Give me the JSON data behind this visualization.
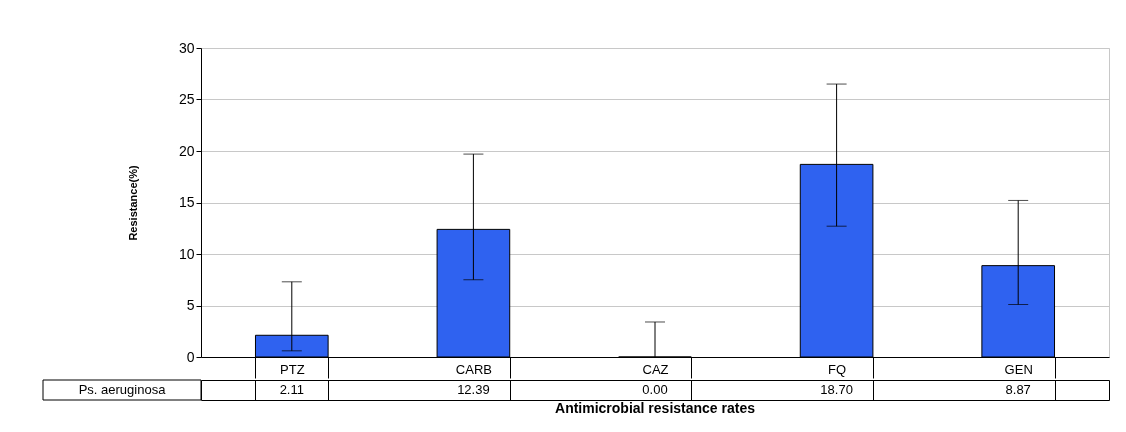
{
  "chart_data": {
    "type": "bar",
    "xlabel": "Antimicrobial resistance rates",
    "ylabel": "Resistance(%)",
    "categories": [
      "PTZ",
      "CARB",
      "CAZ",
      "FQ",
      "GEN"
    ],
    "series": [
      {
        "name": "Ps. aeruginosa",
        "color": "#2f62f0",
        "values": [
          2.11,
          12.39,
          0.0,
          18.7,
          8.87
        ],
        "value_labels": [
          "2.11",
          "12.39",
          "0.00",
          "18.70",
          "8.87"
        ],
        "errors": [
          [
            0.6,
            7.3
          ],
          [
            7.5,
            19.7
          ],
          [
            0,
            3.4
          ],
          [
            12.7,
            26.5
          ],
          [
            5.1,
            15.2
          ]
        ]
      }
    ],
    "ylim": [
      0,
      30
    ],
    "yticks": [
      0,
      5,
      10,
      15,
      20,
      25,
      30
    ],
    "grid": "y",
    "legend": false
  }
}
